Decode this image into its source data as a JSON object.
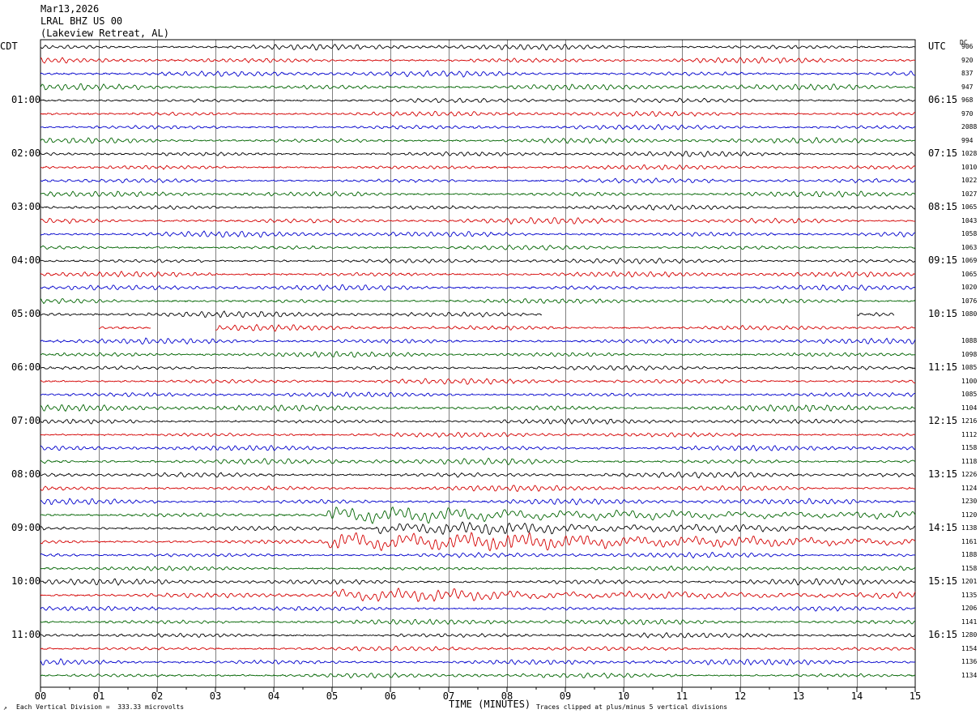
{
  "header": {
    "date": "Mar13,2026",
    "station": "LRAL BHZ US 00",
    "location": "(Lakeview Retreat, AL)"
  },
  "left_label": "CDT",
  "right_label": "UTC",
  "dc_label": "DC",
  "footer": {
    "scale": "Each Vertical Division =  333.33 microvolts",
    "xlabel": "TIME (MINUTES)",
    "clip_note": "Traces clipped at plus/minus 5 vertical divisions"
  },
  "chart_data": {
    "type": "line",
    "title": "",
    "xlabel": "TIME (MINUTES)",
    "ylabel": "",
    "xlim": [
      0,
      15
    ],
    "x_ticks": [
      "00",
      "01",
      "02",
      "03",
      "04",
      "05",
      "06",
      "07",
      "08",
      "09",
      "10",
      "11",
      "12",
      "13",
      "14",
      "15"
    ],
    "grid": true,
    "rows_per_hour": 4,
    "row_colors": [
      "#000000",
      "#d40000",
      "#0000cc",
      "#006400"
    ],
    "left_time_labels": [
      "01:00",
      "02:00",
      "03:00",
      "04:00",
      "05:00",
      "06:00",
      "07:00",
      "08:00",
      "09:00",
      "10:00",
      "11:00"
    ],
    "right_time_labels": [
      "06:15",
      "07:15",
      "08:15",
      "09:15",
      "10:15",
      "11:15",
      "12:15",
      "13:15",
      "14:15",
      "15:15",
      "16:15"
    ],
    "dc_offsets": [
      "906",
      "920",
      "837",
      "947",
      "968",
      "970",
      "2088",
      "994",
      "1028",
      "1010",
      "1022",
      "1027",
      "1065",
      "1043",
      "1058",
      "1063",
      "1069",
      "1065",
      "1020",
      "1076",
      "1080",
      "",
      "1088",
      "1098",
      "1085",
      "1100",
      "1085",
      "1104",
      "1216",
      "1112",
      "1158",
      "1118",
      "1226",
      "1124",
      "1230",
      "1120",
      "1138",
      "1161",
      "1188",
      "1158",
      "1201",
      "1135",
      "1206",
      "1141",
      "1280",
      "1154",
      "1136",
      "1134"
    ],
    "gaps": [
      {
        "row": 20,
        "from_min": 8.6,
        "to_min": 14.0
      },
      {
        "row": 20,
        "from_min": 14.65,
        "to_min": 15.0
      },
      {
        "row": 21,
        "from_min": 1.9,
        "to_min": 3.0
      },
      {
        "row": 21,
        "from_min": 0.0,
        "to_min": 1.0
      }
    ],
    "events": [
      {
        "row": 35,
        "start_min": 4.9,
        "amplitude": 2.0
      },
      {
        "row": 36,
        "start_min": 5.8,
        "amplitude": 1.2
      },
      {
        "row": 37,
        "start_min": 4.9,
        "amplitude": 2.6
      },
      {
        "row": 41,
        "start_min": 5.0,
        "amplitude": 1.3
      }
    ]
  }
}
